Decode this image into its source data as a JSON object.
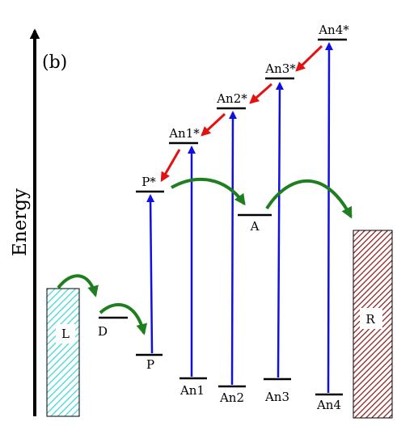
{
  "panel_label": "(b)",
  "axis": {
    "title": "Energy"
  },
  "boxes": {
    "L": {
      "label": "L",
      "fill_color": "#3fd6d6"
    },
    "R": {
      "label": "R",
      "fill_color": "#8b1a1a"
    }
  },
  "levels": {
    "D": "D",
    "P": "P",
    "P_star": "P*",
    "A": "A",
    "An1": "An1",
    "An1_star": "An1*",
    "An2": "An2",
    "An2_star": "An2*",
    "An3": "An3",
    "An3_star": "An3*",
    "An4": "An4",
    "An4_star": "An4*"
  },
  "arrow_colors": {
    "excitation": "#1010e0",
    "relaxation": "#e51010",
    "transfer": "#1f7f1f"
  }
}
